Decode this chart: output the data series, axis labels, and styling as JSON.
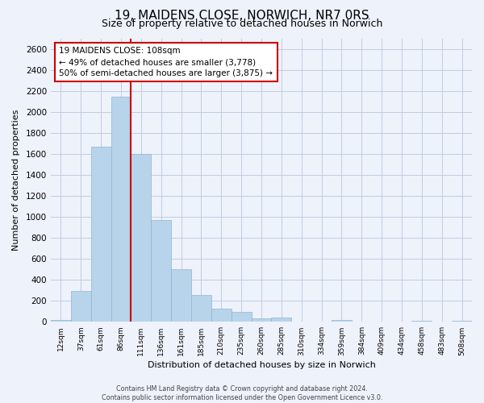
{
  "title": "19, MAIDENS CLOSE, NORWICH, NR7 0RS",
  "subtitle": "Size of property relative to detached houses in Norwich",
  "xlabel": "Distribution of detached houses by size in Norwich",
  "ylabel": "Number of detached properties",
  "bar_labels": [
    "12sqm",
    "37sqm",
    "61sqm",
    "86sqm",
    "111sqm",
    "136sqm",
    "161sqm",
    "185sqm",
    "210sqm",
    "235sqm",
    "260sqm",
    "285sqm",
    "310sqm",
    "334sqm",
    "359sqm",
    "384sqm",
    "409sqm",
    "434sqm",
    "458sqm",
    "483sqm",
    "508sqm"
  ],
  "bar_values": [
    20,
    295,
    1670,
    2140,
    1600,
    970,
    505,
    255,
    125,
    95,
    30,
    40,
    0,
    0,
    15,
    0,
    0,
    0,
    10,
    0,
    10
  ],
  "bar_color": "#b8d4ea",
  "vline_color": "#cc0000",
  "ylim": [
    0,
    2700
  ],
  "yticks": [
    0,
    200,
    400,
    600,
    800,
    1000,
    1200,
    1400,
    1600,
    1800,
    2000,
    2200,
    2400,
    2600
  ],
  "annotation_title": "19 MAIDENS CLOSE: 108sqm",
  "annotation_line1": "← 49% of detached houses are smaller (3,778)",
  "annotation_line2": "50% of semi-detached houses are larger (3,875) →",
  "box_color": "#ffffff",
  "box_edge_color": "#cc0000",
  "footer_line1": "Contains HM Land Registry data © Crown copyright and database right 2024.",
  "footer_line2": "Contains public sector information licensed under the Open Government Licence v3.0.",
  "background_color": "#eef2fb",
  "plot_bg_color": "#eef2fb",
  "grid_color": "#c0cce0"
}
